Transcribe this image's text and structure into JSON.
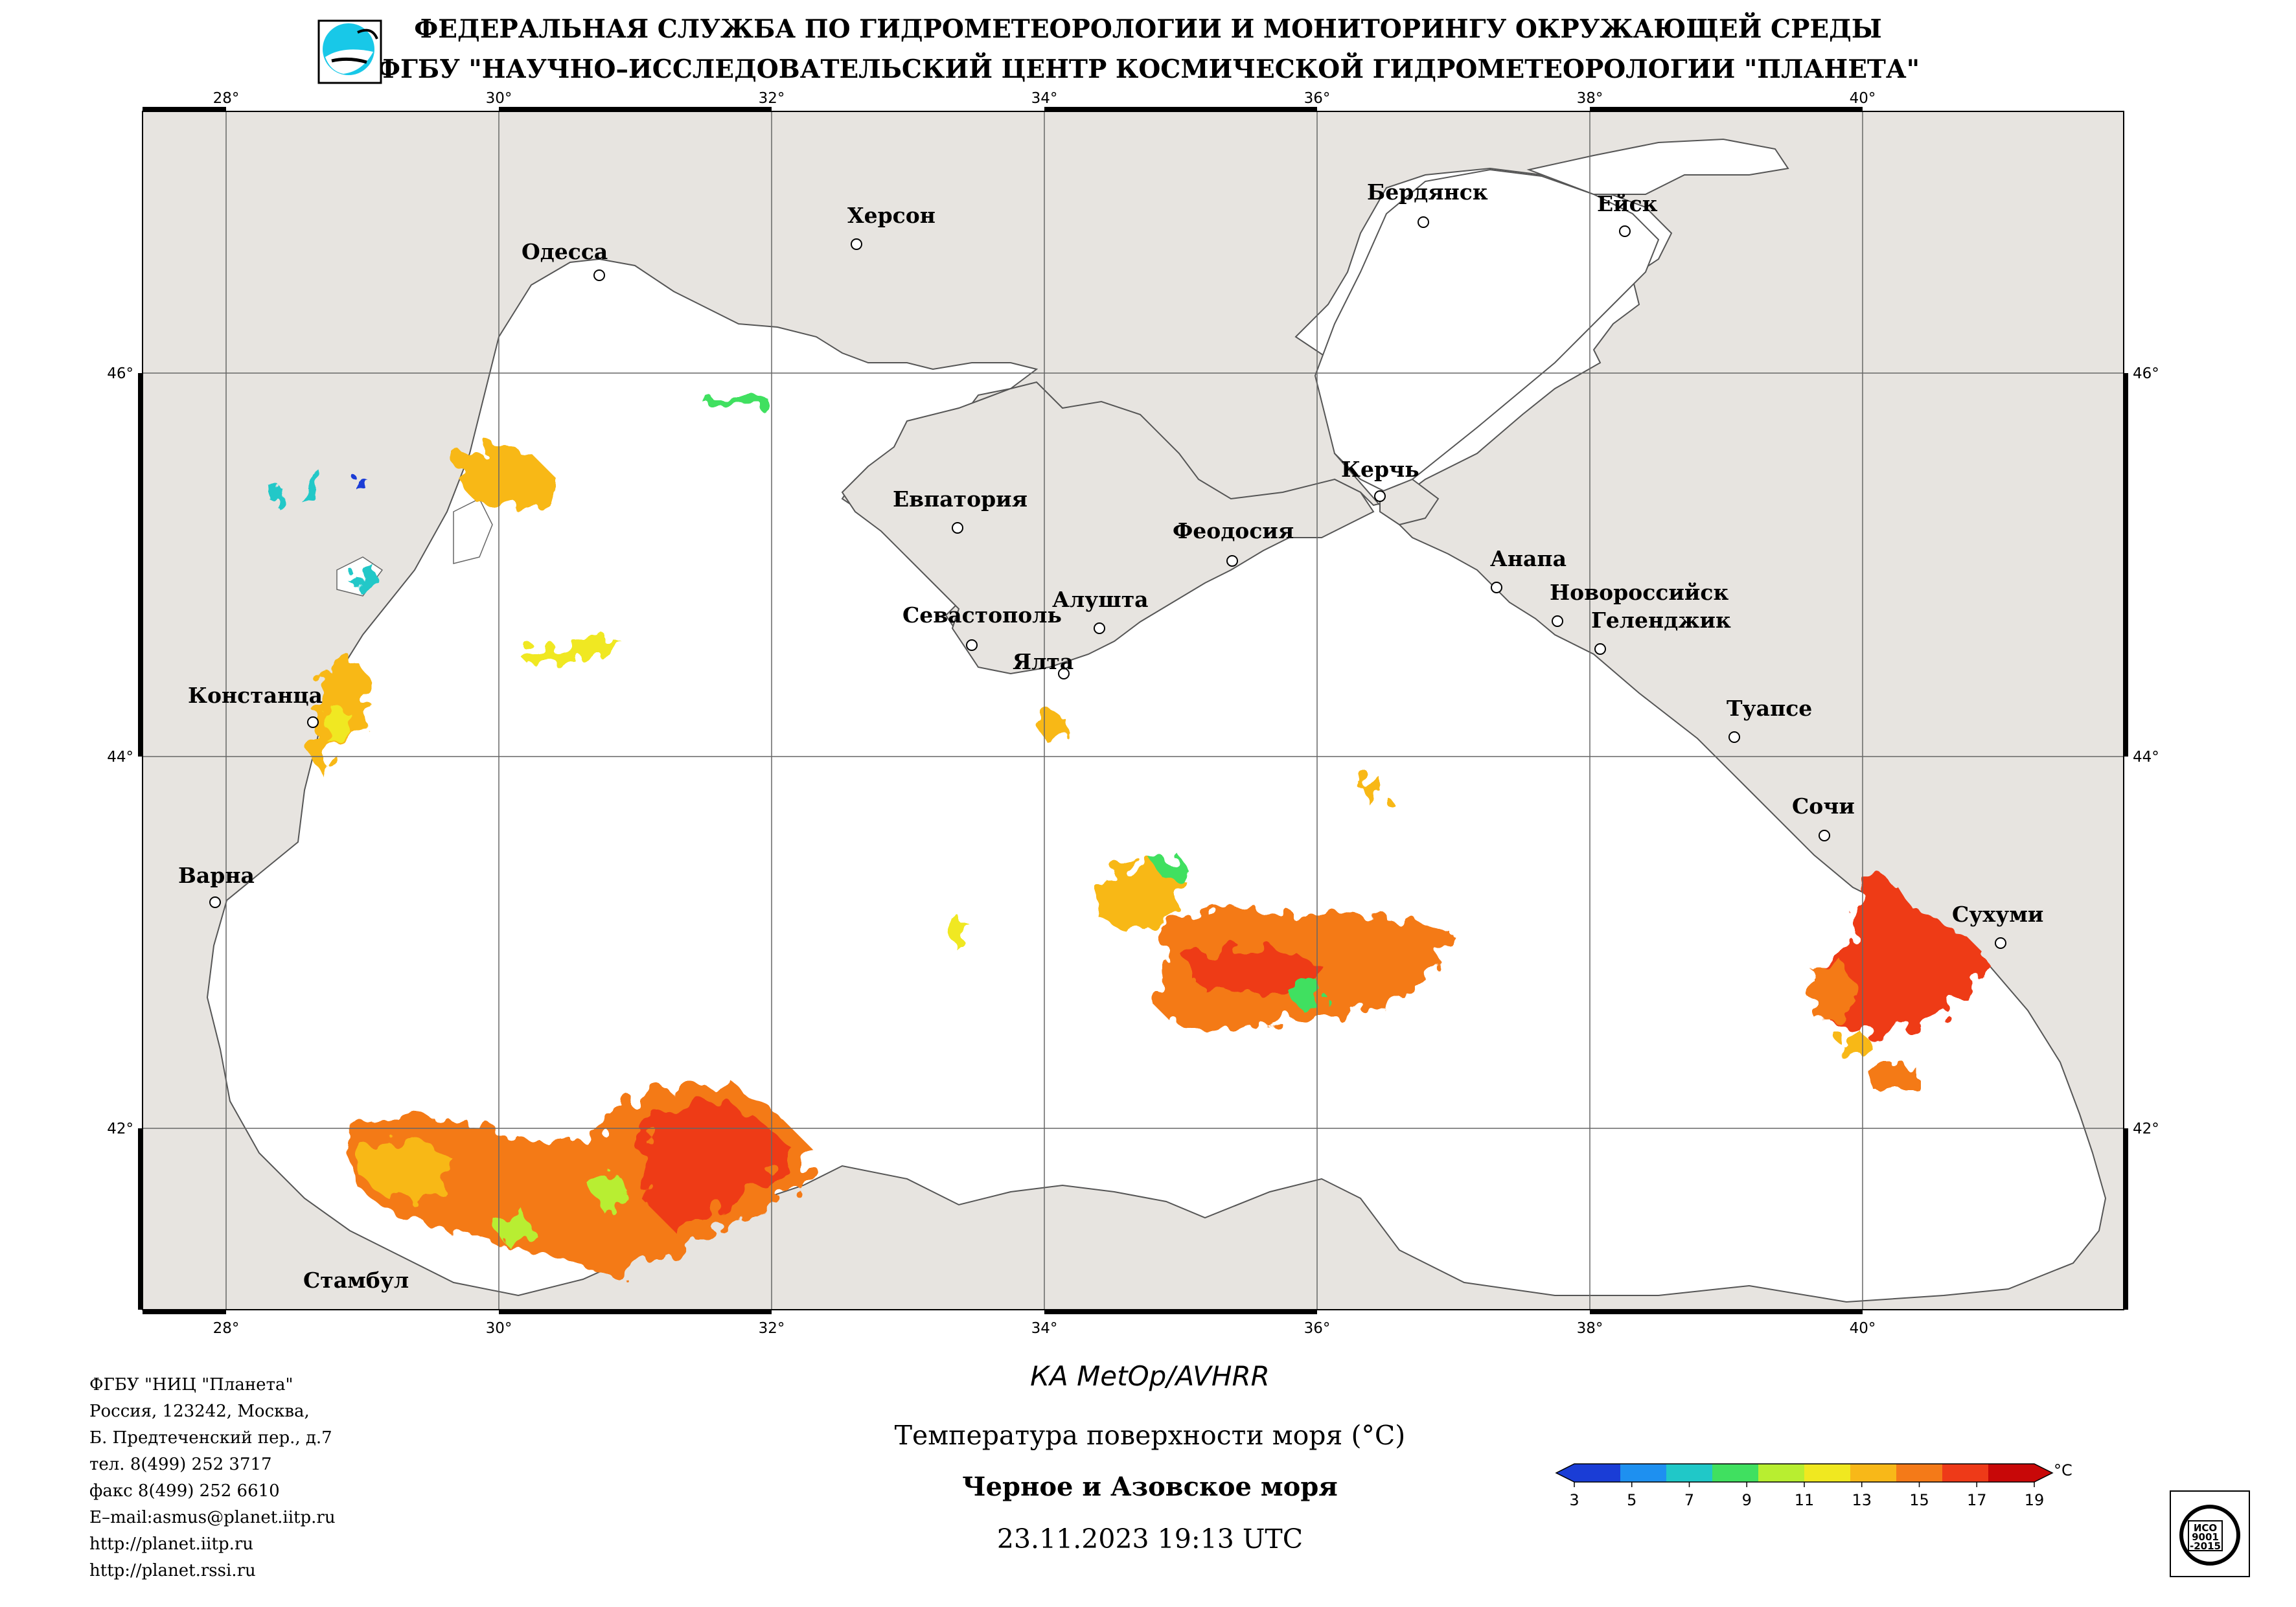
{
  "header": {
    "line1": "ФЕДЕРАЛЬНАЯ СЛУЖБА ПО ГИДРОМЕТЕОРОЛОГИИ И МОНИТОРИНГУ ОКРУЖАЮЩЕЙ СРЕДЫ",
    "line2": "ФГБУ \"НАУЧНО–ИССЛЕДОВАТЕЛЬСКИЙ ЦЕНТР КОСМИЧЕСКОЙ ГИДРОМЕТЕОРОЛОГИИ \"ПЛАНЕТА\""
  },
  "map": {
    "lon_range": [
      27.4,
      42.0
    ],
    "lat_range": [
      40.9,
      47.2
    ],
    "lon_ticks": [
      "28°",
      "30°",
      "32°",
      "34°",
      "36°",
      "38°",
      "40°"
    ],
    "lat_ticks": [
      "46°",
      "44°",
      "42°"
    ],
    "colors": {
      "land": "#e7e4e0",
      "sea": "#ffffff",
      "coast": "#555555"
    },
    "cities": [
      {
        "name": "Одесса",
        "lon": 30.75,
        "lat": 46.48
      },
      {
        "name": "Херсон",
        "lon": 32.6,
        "lat": 46.65
      },
      {
        "name": "Бердянск",
        "lon": 36.8,
        "lat": 46.75
      },
      {
        "name": "Ейск",
        "lon": 38.27,
        "lat": 46.71
      },
      {
        "name": "Евпатория",
        "lon": 33.37,
        "lat": 45.2
      },
      {
        "name": "Керчь",
        "lon": 36.47,
        "lat": 45.36
      },
      {
        "name": "Феодосия",
        "lon": 35.38,
        "lat": 45.03
      },
      {
        "name": "Анапа",
        "lon": 37.32,
        "lat": 44.9
      },
      {
        "name": "Севастополь",
        "lon": 33.52,
        "lat": 44.6
      },
      {
        "name": "Алушта",
        "lon": 34.4,
        "lat": 44.68
      },
      {
        "name": "Новороссийск",
        "lon": 37.77,
        "lat": 44.72
      },
      {
        "name": "Геленджик",
        "lon": 38.07,
        "lat": 44.56
      },
      {
        "name": "Ялта",
        "lon": 34.17,
        "lat": 44.5
      },
      {
        "name": "Констанца",
        "lon": 28.65,
        "lat": 44.17
      },
      {
        "name": "Туапсе",
        "lon": 39.07,
        "lat": 44.1
      },
      {
        "name": "Сочи",
        "lon": 39.72,
        "lat": 43.59
      },
      {
        "name": "Варна",
        "lon": 27.92,
        "lat": 43.21
      },
      {
        "name": "Сухуми",
        "lon": 41.02,
        "lat": 43.0
      },
      {
        "name": "Стамбул",
        "lon": 28.98,
        "lat": 41.01
      }
    ]
  },
  "footer": {
    "org_lines": [
      "ФГБУ \"НИЦ \"Планета\"",
      "Россия, 123242, Москва,",
      "Б. Предтеченский пер., д.7",
      "тел. 8(499) 252 3717",
      "факс 8(499) 252 6610",
      "E–mail:asmus@planet.iitp.ru",
      "http://planet.iitp.ru",
      "http://planet.rssi.ru"
    ],
    "satellite": "КА MetOp/AVHRR",
    "parameter": "Температура поверхности моря (°С)",
    "region": "Черное и Азовское моря",
    "datetime": "23.11.2023 19:13 UTC"
  },
  "colorbar": {
    "unit": "°C",
    "min": 3,
    "max": 19,
    "labels": [
      "3",
      "5",
      "7",
      "9",
      "11",
      "13",
      "15",
      "17",
      "19"
    ],
    "colors": [
      "#1a3dd6",
      "#1e90f0",
      "#20c8c8",
      "#40e060",
      "#b8ee30",
      "#f0e820",
      "#f8b818",
      "#f47a18",
      "#ee3a18",
      "#c80808"
    ]
  },
  "badge": {
    "text": [
      "ИСО",
      "9001",
      "-2015"
    ]
  }
}
